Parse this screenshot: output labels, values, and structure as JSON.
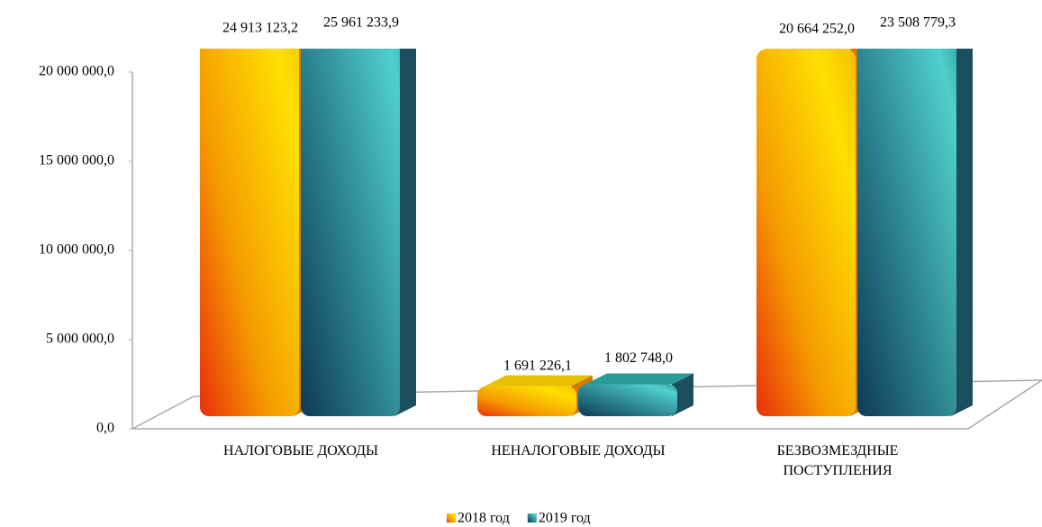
{
  "chart_data": {
    "type": "bar",
    "categories": [
      "НАЛОГОВЫЕ  ДОХОДЫ",
      "НЕНАЛОГОВЫЕ  ДОХОДЫ",
      "БЕЗВОЗМЕЗДНЫЕ ПОСТУПЛЕНИЯ"
    ],
    "series": [
      {
        "name": "2018 год",
        "color": "#f59a00",
        "values": [
          24913123.2,
          1691226.1,
          20664252.0
        ],
        "value_labels": [
          "24 913 123,2",
          "1 691 226,1",
          "20 664 252,0"
        ]
      },
      {
        "name": "2019 год",
        "color": "#2a8590",
        "values": [
          25961233.9,
          1802748.0,
          23508779.3
        ],
        "value_labels": [
          "25 961 233,9",
          "1 802 748,0",
          "23 508 779,3"
        ]
      }
    ],
    "ylim": [
      0,
      20000000
    ],
    "yticks": [
      {
        "value": 0,
        "label": "0,0"
      },
      {
        "value": 5000000,
        "label": "5 000 000,0"
      },
      {
        "value": 10000000,
        "label": "10 000 000,0"
      },
      {
        "value": 15000000,
        "label": "15 000 000,0"
      },
      {
        "value": 20000000,
        "label": "20 000 000,0"
      }
    ],
    "legend": "bottom"
  }
}
